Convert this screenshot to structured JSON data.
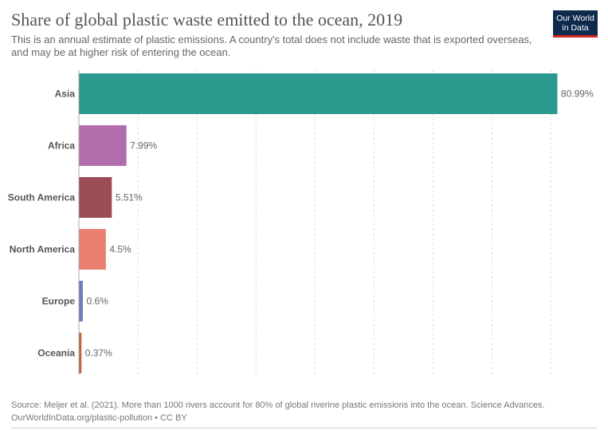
{
  "header": {
    "title": "Share of global plastic waste emitted to the ocean, 2019",
    "subtitle": "This is an annual estimate of plastic emissions. A country's total does not include waste that is exported overseas, and may be at higher risk of entering the ocean."
  },
  "logo": {
    "line1": "Our World",
    "line2": "in Data",
    "bg_color": "#0f2a4d",
    "accent_color": "#ce261e"
  },
  "footer": {
    "source": "Source: Meijer et al. (2021). More than 1000 rivers account for 80% of global riverine plastic emissions into the ocean. Science Advances.",
    "url": "OurWorldInData.org/plastic-pollution • CC BY"
  },
  "chart_data": {
    "type": "bar",
    "orientation": "horizontal",
    "categories": [
      "Asia",
      "Africa",
      "South America",
      "North America",
      "Europe",
      "Oceania"
    ],
    "values": [
      80.99,
      7.99,
      5.51,
      4.5,
      0.6,
      0.37
    ],
    "value_labels": [
      "80.99%",
      "7.99%",
      "5.51%",
      "4.5%",
      "0.6%",
      "0.37%"
    ],
    "colors": [
      "#2a9a8f",
      "#b26dac",
      "#9c4c54",
      "#ea7e71",
      "#6a7fb5",
      "#c4623d"
    ],
    "xlim": [
      0,
      81
    ],
    "grid": true,
    "grid_ticks": [
      10,
      20,
      30,
      40,
      50,
      60,
      70,
      80
    ]
  }
}
